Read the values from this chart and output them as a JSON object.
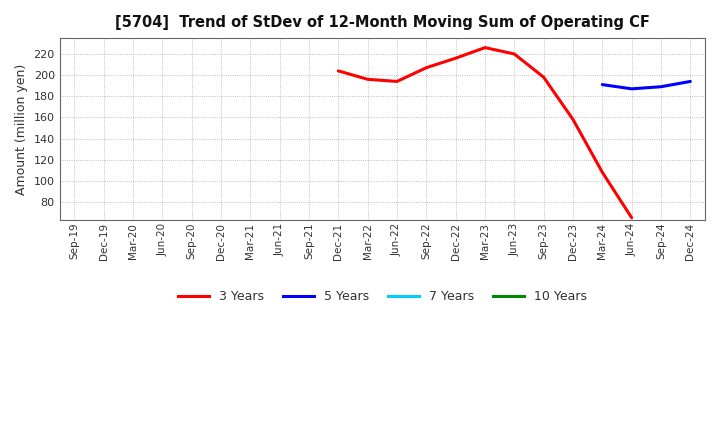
{
  "title": "[5704]  Trend of StDev of 12-Month Moving Sum of Operating CF",
  "ylabel": "Amount (million yen)",
  "background_color": "#ffffff",
  "grid_color": "#999999",
  "ylim": [
    63,
    235
  ],
  "yticks": [
    80,
    100,
    120,
    140,
    160,
    180,
    200,
    220
  ],
  "x_labels": [
    "Sep-19",
    "Dec-19",
    "Mar-20",
    "Jun-20",
    "Sep-20",
    "Dec-20",
    "Mar-21",
    "Jun-21",
    "Sep-21",
    "Dec-21",
    "Mar-22",
    "Jun-22",
    "Sep-22",
    "Dec-22",
    "Mar-23",
    "Jun-23",
    "Sep-23",
    "Dec-23",
    "Mar-24",
    "Jun-24",
    "Sep-24",
    "Dec-24"
  ],
  "series_3y": {
    "color": "#ff0000",
    "label": "3 Years",
    "x": [
      "Dec-21",
      "Mar-22",
      "Jun-22",
      "Sep-22",
      "Dec-22",
      "Mar-23",
      "Jun-23",
      "Sep-23",
      "Dec-23",
      "Mar-24",
      "Jun-24"
    ],
    "y": [
      204,
      196,
      194,
      207,
      216,
      226,
      220,
      198,
      158,
      108,
      65
    ]
  },
  "series_5y": {
    "color": "#0000ff",
    "label": "5 Years",
    "x": [
      "Mar-24",
      "Jun-24",
      "Sep-24",
      "Dec-24"
    ],
    "y": [
      191,
      187,
      189,
      194
    ]
  },
  "series_7y": {
    "color": "#00ccff",
    "label": "7 Years",
    "x": [],
    "y": []
  },
  "series_10y": {
    "color": "#008800",
    "label": "10 Years",
    "x": [],
    "y": []
  },
  "legend_colors": [
    "#ff0000",
    "#0000ff",
    "#00ccff",
    "#008800"
  ],
  "legend_labels": [
    "3 Years",
    "5 Years",
    "7 Years",
    "10 Years"
  ]
}
